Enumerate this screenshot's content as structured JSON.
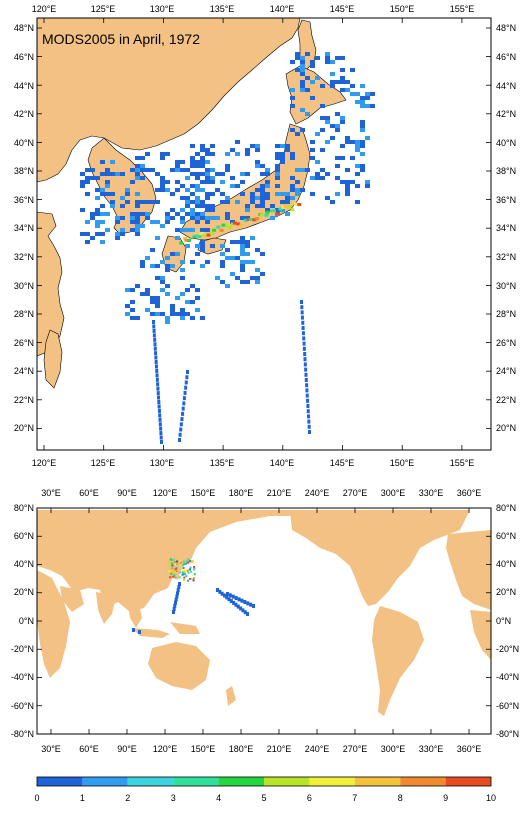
{
  "colors": {
    "land": "#f2c183",
    "ocean": "#ffffff",
    "frame": "#000000",
    "colorbar": [
      "#1f63d8",
      "#2f9cf0",
      "#3cd3e0",
      "#2ee09a",
      "#24d640",
      "#b7e32a",
      "#f0f03a",
      "#f3c23a",
      "#f08a2c",
      "#e84a24"
    ]
  },
  "top_map": {
    "title": "MODS2005 in April, 1972",
    "lon_labels": [
      "120°E",
      "125°E",
      "130°E",
      "135°E",
      "140°E",
      "145°E",
      "150°E",
      "155°E"
    ],
    "lat_labels": [
      "48°N",
      "46°N",
      "44°N",
      "42°N",
      "40°N",
      "38°N",
      "36°N",
      "34°N",
      "32°N",
      "30°N",
      "28°N",
      "26°N",
      "24°N",
      "22°N",
      "20°N"
    ]
  },
  "bottom_map": {
    "lon_labels": [
      "30°E",
      "60°E",
      "90°E",
      "120°E",
      "150°E",
      "180°E",
      "210°E",
      "240°E",
      "270°E",
      "300°E",
      "330°E",
      "360°E"
    ],
    "lat_labels": [
      "80°N",
      "60°N",
      "40°N",
      "20°N",
      "0°N",
      "-20°N",
      "-40°N",
      "-60°N",
      "-80°N"
    ]
  },
  "colorbar": {
    "ticks": [
      "0",
      "1",
      "2",
      "3",
      "4",
      "5",
      "6",
      "7",
      "8",
      "9",
      "10"
    ]
  }
}
